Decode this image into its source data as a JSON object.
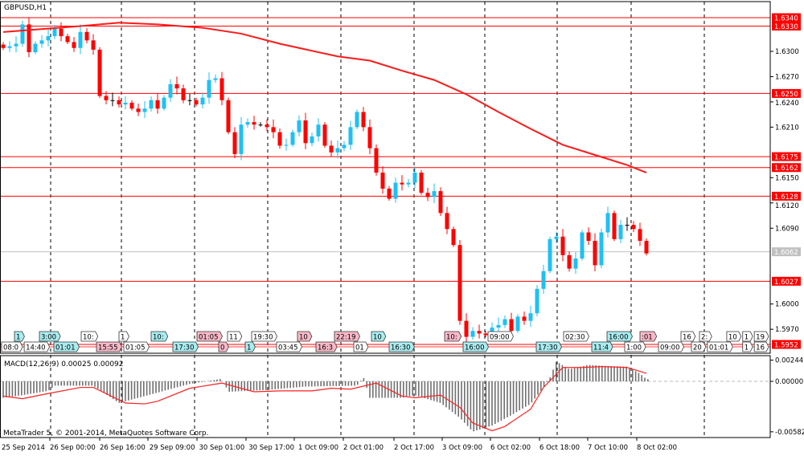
{
  "window": {
    "title": "GBPUSD,H1"
  },
  "footer": {
    "copyright": "MetaTrader 5, © 2001-2014, MetaQuotes Software Corp."
  },
  "colors": {
    "up": "#1ec0f5",
    "down": "#ff0000",
    "ma": "#ff1a1a",
    "level": "#ff0000",
    "bid": "#c0c0c0",
    "histogram": "#707070",
    "signal": "#ff2020"
  },
  "chart_data": [
    {
      "type": "candlestick",
      "title": "GBPUSD,H1",
      "ylim": [
        1.5942,
        1.6359
      ],
      "yticks": [
        "1.6300",
        "1.6270",
        "1.6240",
        "1.6210",
        "1.6150",
        "1.6120",
        "1.6090",
        "1.6000",
        "1.5970"
      ],
      "xticks": [
        "25 Sep 2014",
        "26 Sep 00:00",
        "26 Sep 16:00",
        "29 Sep 09:00",
        "30 Sep 01:00",
        "30 Sep 17:00",
        "1 Oct 09:00",
        "2 Oct 01:00",
        "2 Oct 17:00",
        "3 Oct 09:00",
        "6 Oct 02:00",
        "6 Oct 18:00",
        "7 Oct 10:00",
        "8 Oct 02:00"
      ],
      "grid": "vertical dashed",
      "close": [
        1.6304,
        1.6306,
        1.6309,
        1.6332,
        1.6299,
        1.6309,
        1.6313,
        1.6318,
        1.6327,
        1.6318,
        1.6311,
        1.6304,
        1.6323,
        1.6313,
        1.6302,
        1.6247,
        1.6242,
        1.6242,
        1.6237,
        1.6239,
        1.6232,
        1.6228,
        1.6232,
        1.6242,
        1.6232,
        1.6245,
        1.6261,
        1.6256,
        1.6242,
        1.6242,
        1.6237,
        1.6245,
        1.6266,
        1.6268,
        1.6242,
        1.6204,
        1.6178,
        1.6213,
        1.6216,
        1.6213,
        1.6213,
        1.621,
        1.6204,
        1.6188,
        1.6189,
        1.6204,
        1.6218,
        1.6191,
        1.6199,
        1.6213,
        1.6188,
        1.618,
        1.6185,
        1.6189,
        1.621,
        1.6228,
        1.621,
        1.6185,
        1.6156,
        1.6137,
        1.6125,
        1.6144,
        1.6142,
        1.6144,
        1.6156,
        1.6132,
        1.6127,
        1.6134,
        1.6108,
        1.6089,
        1.607,
        1.598,
        1.5961,
        1.5968,
        1.5965,
        1.5963,
        1.5972,
        1.5975,
        1.5982,
        1.5968,
        1.5985,
        1.598,
        1.5989,
        1.6018,
        1.6039,
        1.6077,
        1.608,
        1.6058,
        1.6042,
        1.6054,
        1.6085,
        1.6075,
        1.6046,
        1.6085,
        1.6108,
        1.6077,
        1.6094,
        1.6094,
        1.6089,
        1.6075,
        1.606
      ],
      "moving_average": [
        [
          0,
          1.6323
        ],
        [
          12,
          1.633
        ],
        [
          18,
          1.6334
        ],
        [
          24,
          1.6332
        ],
        [
          31,
          1.6328
        ],
        [
          37,
          1.6321
        ],
        [
          43,
          1.6309
        ],
        [
          52,
          1.6294
        ],
        [
          57,
          1.6289
        ],
        [
          62,
          1.6277
        ],
        [
          67,
          1.6266
        ],
        [
          72,
          1.6249
        ],
        [
          77,
          1.6228
        ],
        [
          82,
          1.6208
        ],
        [
          87,
          1.6189
        ],
        [
          92,
          1.6177
        ],
        [
          97,
          1.6165
        ],
        [
          100,
          1.6156
        ]
      ],
      "levels": [
        "1.6340",
        "1.6330",
        "1.6250",
        "1.6175",
        "1.6162",
        "1.6128",
        "1.6027",
        "1.5952"
      ],
      "bid": "1.6062"
    },
    {
      "type": "bar",
      "title": "MACD(12,26,9) 0.00025 0.00092",
      "ylim": [
        -0.00582,
        0.00244
      ],
      "yticks": [
        "0.00244",
        "0.00000",
        "-0.00582"
      ],
      "histogram": [
        [
          0,
          -0.0019
        ],
        [
          3,
          -0.0016
        ],
        [
          7,
          -0.0011
        ],
        [
          8,
          -0.0005
        ],
        [
          14,
          -0.0005
        ],
        [
          18,
          -0.0025
        ],
        [
          29,
          -0.0003
        ],
        [
          34,
          0.0003
        ],
        [
          35,
          -0.0012
        ],
        [
          41,
          -0.001
        ],
        [
          47,
          -0.0006
        ],
        [
          55,
          -0.0005
        ],
        [
          56,
          0.0005
        ],
        [
          57,
          -0.0019
        ],
        [
          62,
          -0.0019
        ],
        [
          64,
          -0.0016
        ],
        [
          68,
          -0.0025
        ],
        [
          71,
          -0.0042
        ],
        [
          73,
          -0.0058
        ],
        [
          76,
          -0.0051
        ],
        [
          79,
          -0.0039
        ],
        [
          82,
          -0.0026
        ],
        [
          84,
          -0.0007
        ],
        [
          85,
          0.0004
        ],
        [
          86,
          0.0023
        ],
        [
          88,
          0.0014
        ],
        [
          91,
          0.0019
        ],
        [
          93,
          0.0018
        ],
        [
          97,
          0.0017
        ],
        [
          99,
          0.0009
        ],
        [
          100,
          0.00025
        ]
      ],
      "signal": [
        [
          0,
          -0.0017
        ],
        [
          3,
          -0.002
        ],
        [
          7,
          -0.0014
        ],
        [
          12,
          -0.0007
        ],
        [
          14,
          -0.0007
        ],
        [
          19,
          -0.0025
        ],
        [
          22,
          -0.0026
        ],
        [
          24,
          -0.0023
        ],
        [
          29,
          -0.0008
        ],
        [
          34,
          -0.0002
        ],
        [
          39,
          -0.0012
        ],
        [
          43,
          -0.0011
        ],
        [
          48,
          -0.0011
        ],
        [
          51,
          -0.0008
        ],
        [
          54,
          -0.0009
        ],
        [
          58,
          -0.0002
        ],
        [
          62,
          -0.0017
        ],
        [
          64,
          -0.0019
        ],
        [
          68,
          -0.0016
        ],
        [
          71,
          -0.003
        ],
        [
          73,
          -0.0048
        ],
        [
          76,
          -0.0057
        ],
        [
          78,
          -0.0052
        ],
        [
          82,
          -0.0032
        ],
        [
          84,
          -0.0007
        ],
        [
          87,
          0.0016
        ],
        [
          90,
          0.0016
        ],
        [
          93,
          0.0017
        ],
        [
          97,
          0.0016
        ],
        [
          100,
          0.00092
        ]
      ]
    }
  ],
  "events": [
    {
      "text": "08:0",
      "kind": "white"
    },
    {
      "text": "1",
      "kind": "cyan"
    },
    {
      "text": "14:40",
      "kind": "white"
    },
    {
      "text": "3:00",
      "kind": "cyan"
    },
    {
      "text": "01:01",
      "kind": "cyan"
    },
    {
      "text": "10:",
      "kind": "white"
    },
    {
      "text": "15:55",
      "kind": "pink"
    },
    {
      "text": "1",
      "kind": "white"
    },
    {
      "text": "01:05",
      "kind": "white"
    },
    {
      "text": "10:",
      "kind": "cyan"
    },
    {
      "text": "17:30",
      "kind": "cyan"
    },
    {
      "text": "01:05",
      "kind": "pink"
    },
    {
      "text": "0",
      "kind": "pink"
    },
    {
      "text": "11",
      "kind": "white"
    },
    {
      "text": "1",
      "kind": "cyan"
    },
    {
      "text": "19:30",
      "kind": "white"
    },
    {
      "text": "03:45",
      "kind": "white"
    },
    {
      "text": "10",
      "kind": "pink"
    },
    {
      "text": "16:3",
      "kind": "pink"
    },
    {
      "text": "22:19",
      "kind": "pink"
    },
    {
      "text": "01",
      "kind": "white"
    },
    {
      "text": "10",
      "kind": "cyan"
    },
    {
      "text": "16:30",
      "kind": "cyan"
    },
    {
      "text": "10:",
      "kind": "pink"
    },
    {
      "text": "16:00",
      "kind": "cyan"
    },
    {
      "text": "09:00",
      "kind": "white"
    },
    {
      "text": "17:30",
      "kind": "cyan"
    },
    {
      "text": "02:30",
      "kind": "white"
    },
    {
      "text": "11:4",
      "kind": "cyan"
    },
    {
      "text": "16:00",
      "kind": "cyan"
    },
    {
      "text": "1:00",
      "kind": "white"
    },
    {
      "text": ":01",
      "kind": "pink"
    },
    {
      "text": "09:00",
      "kind": "white"
    },
    {
      "text": "16",
      "kind": "white"
    },
    {
      "text": "20",
      "kind": "white"
    },
    {
      "text": "2:",
      "kind": "white"
    },
    {
      "text": "01:01",
      "kind": "white"
    },
    {
      "text": "10",
      "kind": "white"
    },
    {
      "text": "1",
      "kind": "white"
    },
    {
      "text": "1",
      "kind": "white"
    },
    {
      "text": "16",
      "kind": "white"
    },
    {
      "text": "19",
      "kind": "white"
    }
  ]
}
